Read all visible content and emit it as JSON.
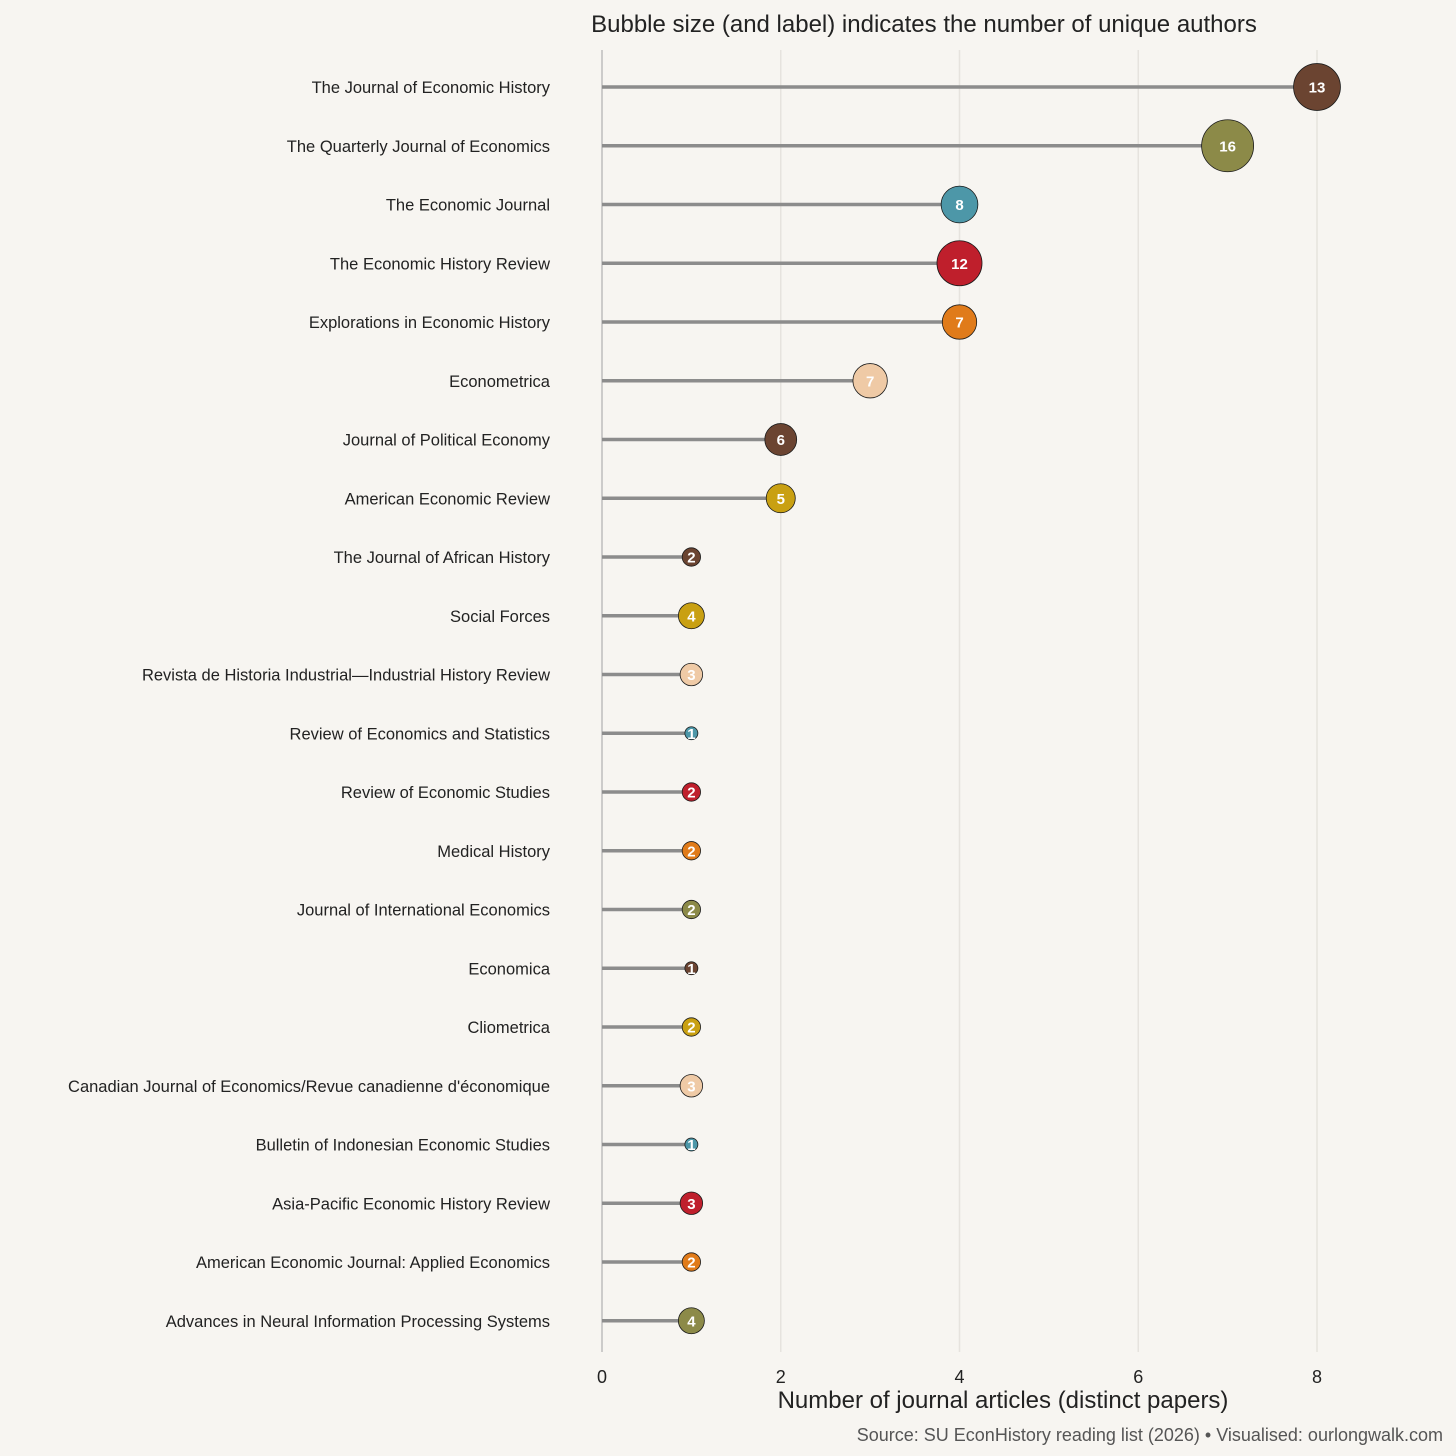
{
  "chart_data": {
    "type": "lollipop-bubble",
    "title": "Bubble size (and label) indicates the number of unique authors",
    "xlabel": "Number of journal articles (distinct papers)",
    "ylabel": "",
    "caption": "Source: SU EconHistory reading list (2026) • Visualised: ourlongwalk.com",
    "xlim": [
      0,
      8
    ],
    "xticks": [
      0,
      2,
      4,
      6,
      8
    ],
    "grid": "vertical major gridlines",
    "legend": "none",
    "items": [
      {
        "journal": "The Journal of Economic History",
        "articles": 8,
        "authors": 13,
        "color": "#6b4431"
      },
      {
        "journal": "The Quarterly Journal of Economics",
        "articles": 7,
        "authors": 16,
        "color": "#8c8a48"
      },
      {
        "journal": "The Economic Journal",
        "articles": 4,
        "authors": 8,
        "color": "#4d97a8"
      },
      {
        "journal": "The Economic History Review",
        "articles": 4,
        "authors": 12,
        "color": "#bf1f2c"
      },
      {
        "journal": "Explorations in Economic History",
        "articles": 4,
        "authors": 7,
        "color": "#e07b1a"
      },
      {
        "journal": "Econometrica",
        "articles": 3,
        "authors": 7,
        "color": "#efcaa6"
      },
      {
        "journal": "Journal of Political Economy",
        "articles": 2,
        "authors": 6,
        "color": "#6b4431"
      },
      {
        "journal": "American Economic Review",
        "articles": 2,
        "authors": 5,
        "color": "#c9a012"
      },
      {
        "journal": "The Journal of African History",
        "articles": 1,
        "authors": 2,
        "color": "#6b4431"
      },
      {
        "journal": "Social Forces",
        "articles": 1,
        "authors": 4,
        "color": "#c9a012"
      },
      {
        "journal": "Revista de Historia Industrial—Industrial History Review",
        "articles": 1,
        "authors": 3,
        "color": "#efcaa6"
      },
      {
        "journal": "Review of Economics and Statistics",
        "articles": 1,
        "authors": 1,
        "color": "#4d97a8"
      },
      {
        "journal": "Review of Economic Studies",
        "articles": 1,
        "authors": 2,
        "color": "#bf1f2c"
      },
      {
        "journal": "Medical History",
        "articles": 1,
        "authors": 2,
        "color": "#e07b1a"
      },
      {
        "journal": "Journal of International Economics",
        "articles": 1,
        "authors": 2,
        "color": "#8c8a48"
      },
      {
        "journal": "Economica",
        "articles": 1,
        "authors": 1,
        "color": "#6b4431"
      },
      {
        "journal": "Cliometrica",
        "articles": 1,
        "authors": 2,
        "color": "#c9a012"
      },
      {
        "journal": "Canadian Journal of Economics/Revue canadienne d'économique",
        "articles": 1,
        "authors": 3,
        "color": "#efcaa6"
      },
      {
        "journal": "Bulletin of Indonesian Economic Studies",
        "articles": 1,
        "authors": 1,
        "color": "#4d97a8"
      },
      {
        "journal": "Asia-Pacific Economic History Review",
        "articles": 1,
        "authors": 3,
        "color": "#bf1f2c"
      },
      {
        "journal": "American Economic Journal: Applied Economics",
        "articles": 1,
        "authors": 2,
        "color": "#e07b1a"
      },
      {
        "journal": "Advances in Neural Information Processing Systems",
        "articles": 1,
        "authors": 4,
        "color": "#8c8a48"
      }
    ]
  },
  "colors": {
    "background": "#f7f5f1",
    "stem": "#8c8c8c",
    "gridline": "#e6e3de",
    "axis_line": "#bdbdbd"
  }
}
